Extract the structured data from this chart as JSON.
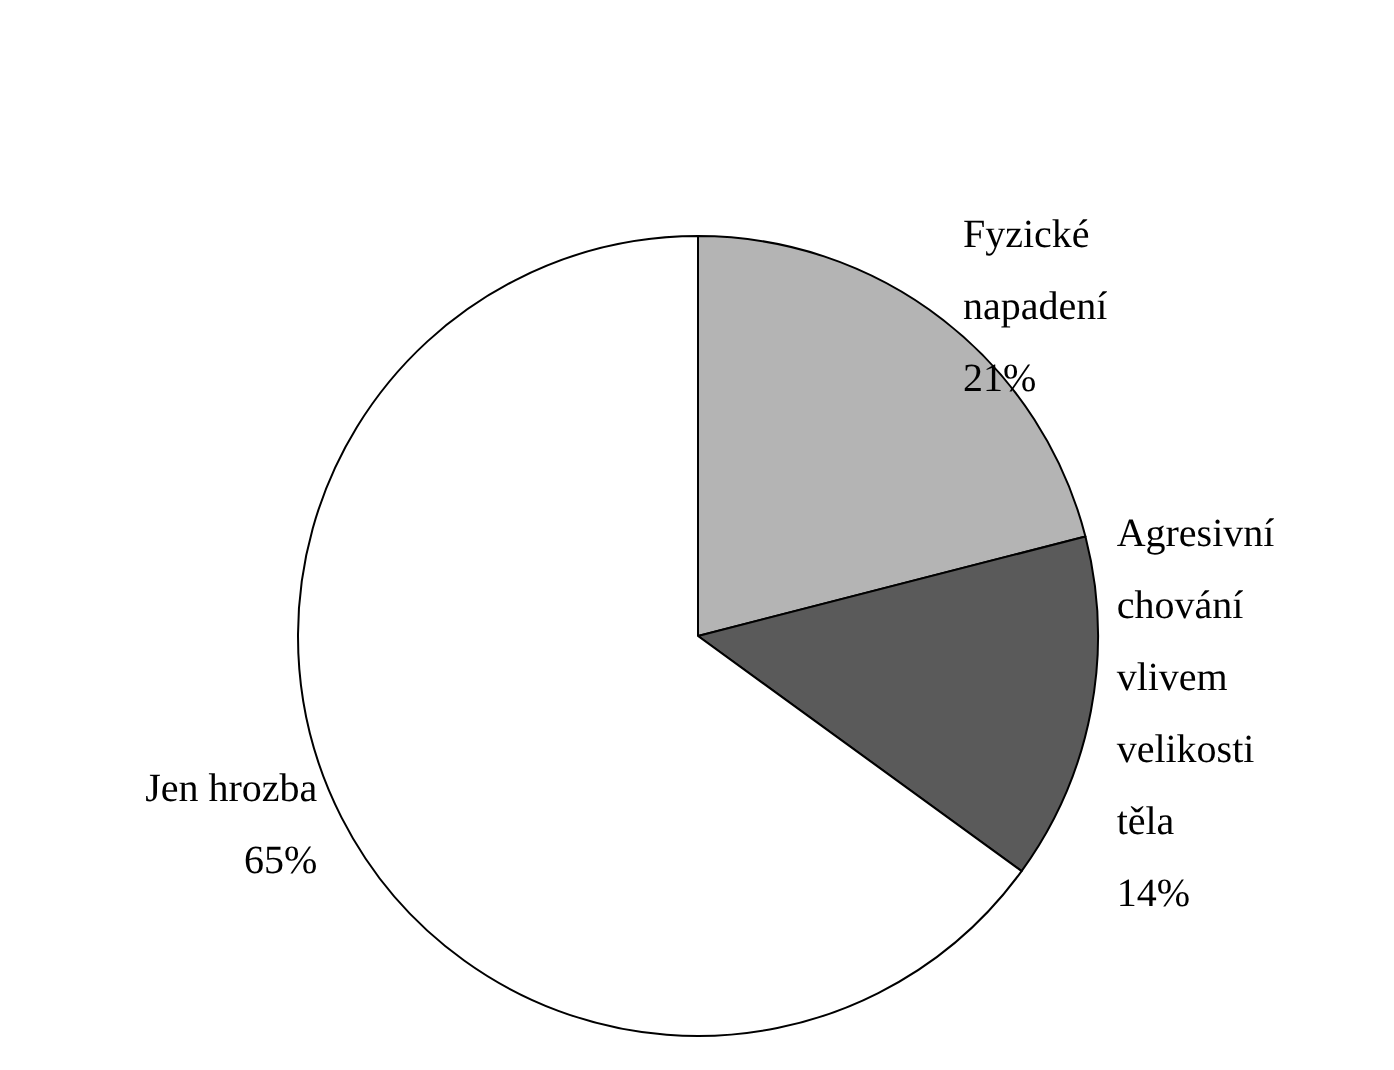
{
  "chart_data": {
    "type": "pie",
    "categories": [
      "Fyzické napadení",
      "Agresivní chování vlivem velikosti těla",
      "Jen hrozba"
    ],
    "values": [
      21,
      14,
      65
    ],
    "value_labels": [
      "21%",
      "14%",
      "65%"
    ],
    "colors": [
      "#b4b4b4",
      "#5a5a5a",
      "#ffffff"
    ]
  }
}
